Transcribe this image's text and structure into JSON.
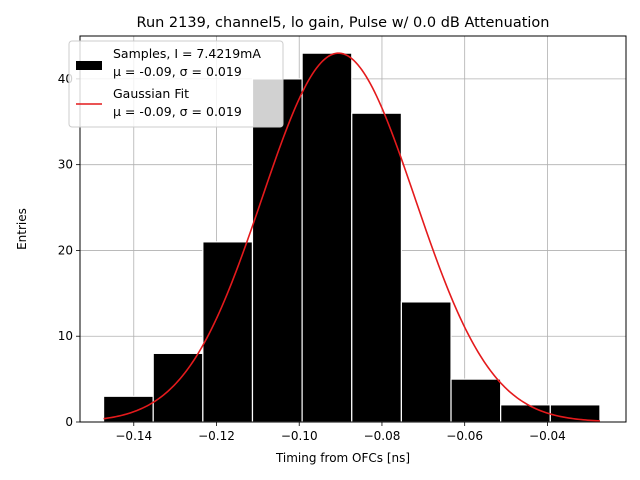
{
  "chart_data": {
    "type": "bar",
    "title": "Run 2139, channel5, lo gain, Pulse w/ 0.0 dB Attenuation",
    "xlabel": "Timing from OFCs [ns]",
    "ylabel": "Entries",
    "xlim": [
      -0.153,
      -0.021
    ],
    "ylim": [
      0,
      45
    ],
    "grid": true,
    "bin_edges": [
      -0.1473,
      -0.1353,
      -0.1233,
      -0.1113,
      -0.0993,
      -0.0873,
      -0.0753,
      -0.0633,
      -0.0513,
      -0.0393,
      -0.0273
    ],
    "counts": [
      3,
      8,
      21,
      40,
      43,
      36,
      14,
      5,
      2,
      2
    ],
    "bar_color": "#000000",
    "bar_edge_color": "#ffffff",
    "fit": {
      "type": "gaussian",
      "amplitude": 43,
      "mean": -0.0905,
      "sigma": 0.0185,
      "x_range": [
        -0.1473,
        -0.0273
      ],
      "color": "#e41a1c"
    },
    "xticks": [
      -0.14,
      -0.12,
      -0.1,
      -0.08,
      -0.06,
      -0.04
    ],
    "xtick_labels": [
      "−0.14",
      "−0.12",
      "−0.10",
      "−0.08",
      "−0.06",
      "−0.04"
    ],
    "yticks": [
      0,
      10,
      20,
      30,
      40
    ],
    "ytick_labels": [
      "0",
      "10",
      "20",
      "30",
      "40"
    ],
    "legend": {
      "position": "top-left",
      "entries": [
        {
          "kind": "patch",
          "line1": "Samples, I = 7.4219mA",
          "line2": "μ = -0.09, σ = 0.019",
          "color": "#000000"
        },
        {
          "kind": "line",
          "line1": "Gaussian Fit",
          "line2": "μ = -0.09, σ = 0.019",
          "color": "#e41a1c"
        }
      ]
    }
  }
}
